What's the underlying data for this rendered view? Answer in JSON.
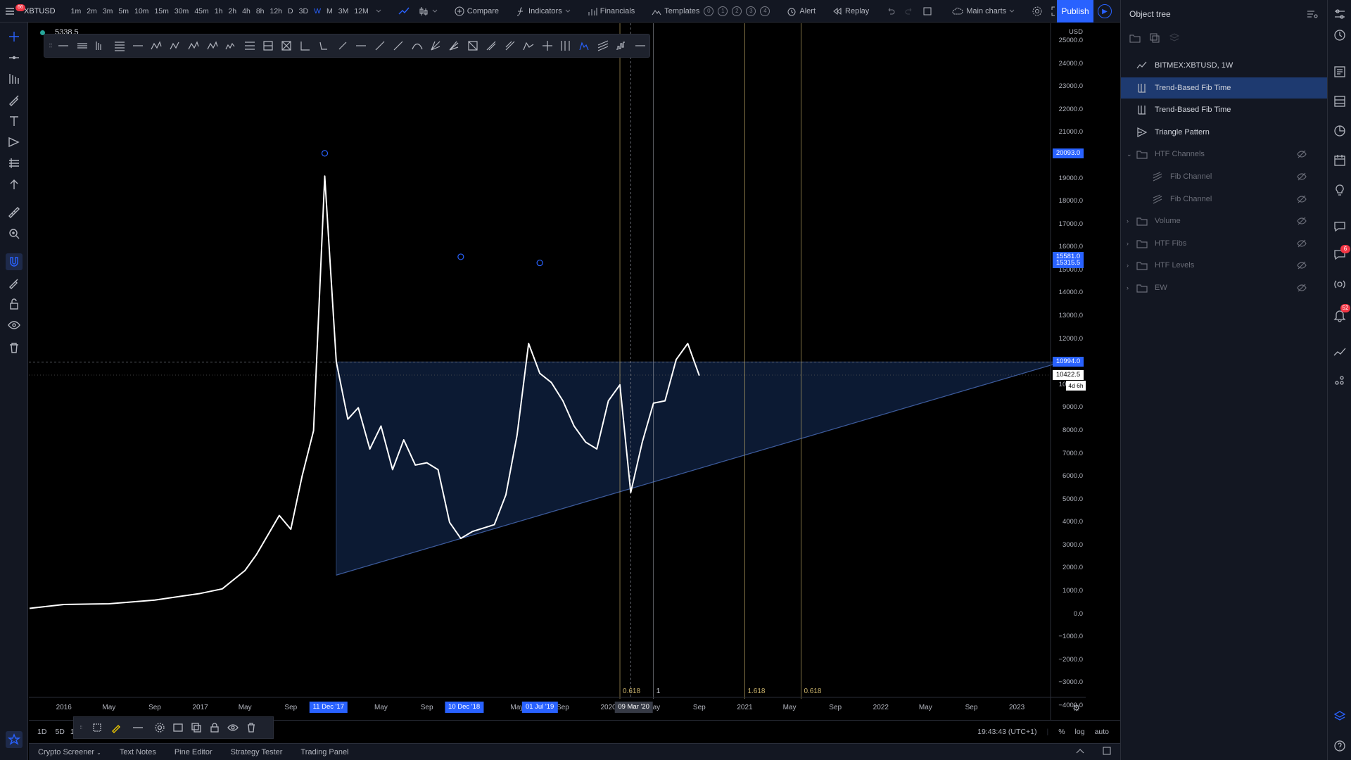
{
  "header": {
    "symbol": "XBTUSD",
    "menu_badge": "66",
    "timeframes": [
      "1m",
      "2m",
      "3m",
      "5m",
      "10m",
      "15m",
      "30m",
      "45m",
      "1h",
      "2h",
      "4h",
      "8h",
      "12h",
      "D",
      "3D",
      "W",
      "M",
      "3M",
      "12M"
    ],
    "active_timeframe": "W",
    "compare_label": "Compare",
    "indicators_label": "Indicators",
    "financials_label": "Financials",
    "templates_label": "Templates",
    "template_slots": [
      "0",
      "1",
      "2",
      "3",
      "4"
    ],
    "alert_label": "Alert",
    "replay_label": "Replay",
    "layout_label": "Main charts",
    "publish_label": "Publish"
  },
  "legend": {
    "value": "5338.5",
    "dot_color": "#26a69a"
  },
  "price_axis": {
    "unit": "USD",
    "labels": [
      "25000.0",
      "24000.0",
      "23000.0",
      "22000.0",
      "21000.0",
      "20000.0",
      "19000.0",
      "18000.0",
      "17000.0",
      "16000.0",
      "15000.0",
      "14000.0",
      "13000.0",
      "12000.0",
      "11000.0",
      "10000.0",
      "9000.0",
      "8000.0",
      "7000.0",
      "6000.0",
      "5000.0",
      "4000.0",
      "3000.0",
      "2000.0",
      "1000.0",
      "0.0",
      "−1000.0",
      "−2000.0",
      "−3000.0",
      "−4000.0"
    ],
    "badges": [
      {
        "text": "20093.0",
        "value": 20093
      },
      {
        "text": "15581.0",
        "value": 15581
      },
      {
        "text": "15315.5",
        "value": 15315.5
      },
      {
        "text": "10994.0",
        "value": 10994
      }
    ],
    "current_price": "10422.5",
    "countdown": "4d 6h"
  },
  "time_axis": {
    "labels": [
      "2016",
      "May",
      "Sep",
      "2017",
      "May",
      "Sep",
      "May",
      "Sep",
      "May",
      "Sep",
      "2020",
      "May",
      "Sep",
      "2021",
      "May",
      "Sep",
      "2022",
      "May",
      "Sep",
      "2023"
    ],
    "badges": [
      "11 Dec '17",
      "10 Dec '18",
      "01 Jul '19",
      "09 Mar '20"
    ]
  },
  "fib_levels": [
    "0.618",
    "1",
    "1.618",
    "0.618"
  ],
  "chart_data": {
    "type": "line",
    "series": [
      {
        "x": [
          "2015-10",
          "2016-01",
          "2016-05",
          "2016-09",
          "2017-01",
          "2017-03",
          "2017-05",
          "2017-06",
          "2017-08",
          "2017-09",
          "2017-10",
          "2017-11",
          "2017-12",
          "2018-01",
          "2018-02",
          "2018-03",
          "2018-04",
          "2018-05",
          "2018-06",
          "2018-07",
          "2018-08",
          "2018-09",
          "2018-10",
          "2018-11",
          "2018-12",
          "2019-01",
          "2019-03",
          "2019-04",
          "2019-05",
          "2019-06",
          "2019-07",
          "2019-08",
          "2019-09",
          "2019-10",
          "2019-11",
          "2019-12",
          "2020-01",
          "2020-02",
          "2020-03",
          "2020-04",
          "2020-05",
          "2020-06",
          "2020-07",
          "2020-08",
          "2020-09"
        ],
        "values": [
          250,
          420,
          450,
          610,
          900,
          1100,
          1900,
          2600,
          4300,
          3700,
          6000,
          8000,
          19100,
          11000,
          8500,
          9000,
          7200,
          8200,
          6300,
          7600,
          6500,
          6600,
          6300,
          4000,
          3300,
          3600,
          3900,
          5200,
          7800,
          11800,
          10500,
          10100,
          9300,
          8200,
          7500,
          7200,
          9300,
          10000,
          5300,
          7500,
          9200,
          9300,
          11100,
          11800,
          10400
        ]
      }
    ],
    "ylim": [
      -4000,
      25000
    ],
    "grid": false
  },
  "drawings": {
    "triangle": {
      "label": "Triangle Pattern"
    },
    "fib_time": "Trend-Based Fib Time"
  },
  "bottom": {
    "ranges": [
      "1D",
      "5D",
      "1"
    ],
    "clock": "19:43:43 (UTC+1)",
    "pct": "%",
    "log": "log",
    "auto": "auto"
  },
  "footer": {
    "tabs": [
      "Crypto Screener",
      "Text Notes",
      "Pine Editor",
      "Strategy Tester",
      "Trading Panel"
    ]
  },
  "object_tree": {
    "title": "Object tree",
    "items": [
      {
        "label": "BITMEX:XBTUSD, 1W",
        "icon": "line-chart-icon",
        "level": 0,
        "dim": false,
        "selected": false
      },
      {
        "label": "Trend-Based Fib Time",
        "icon": "fib-time-icon",
        "level": 0,
        "dim": false,
        "selected": true
      },
      {
        "label": "Trend-Based Fib Time",
        "icon": "fib-time-icon",
        "level": 0,
        "dim": false,
        "selected": false
      },
      {
        "label": "Triangle Pattern",
        "icon": "triangle-pattern-icon",
        "level": 0,
        "dim": false,
        "selected": false
      },
      {
        "label": "HTF Channels",
        "icon": "folder-icon",
        "level": 0,
        "dim": true,
        "expanded": true
      },
      {
        "label": "Fib Channel",
        "icon": "fib-channel-icon",
        "level": 1,
        "dim": true
      },
      {
        "label": "Fib Channel",
        "icon": "fib-channel-icon",
        "level": 1,
        "dim": true
      },
      {
        "label": "Volume",
        "icon": "folder-icon",
        "level": 0,
        "dim": true
      },
      {
        "label": "HTF Fibs",
        "icon": "folder-icon",
        "level": 0,
        "dim": true
      },
      {
        "label": "HTF Levels",
        "icon": "folder-icon",
        "level": 0,
        "dim": true
      },
      {
        "label": "EW",
        "icon": "folder-icon",
        "level": 0,
        "dim": true
      }
    ]
  },
  "widget_badges": {
    "chats": "6",
    "notifications": "52"
  }
}
